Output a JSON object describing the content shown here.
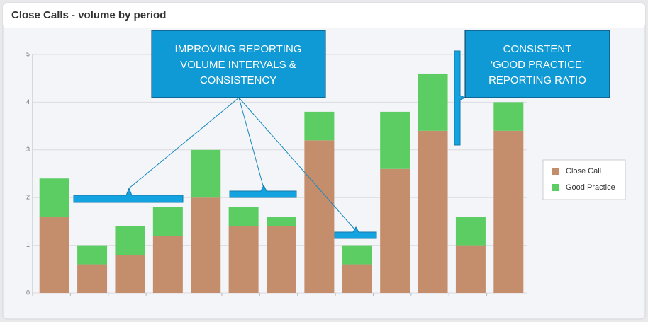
{
  "chart_data": {
    "type": "stacked-bar",
    "title": "Close Calls - volume by period",
    "categories": [
      null,
      null,
      null,
      null,
      null,
      null,
      null,
      null,
      null,
      null,
      null,
      null,
      null
    ],
    "series": [
      {
        "name": "Close Call",
        "color": "#c48e6d",
        "values": [
          1.6,
          0.6,
          0.8,
          1.2,
          2.0,
          1.4,
          1.4,
          3.2,
          0.6,
          2.6,
          3.4,
          1.0,
          3.4
        ]
      },
      {
        "name": "Good Practice",
        "color": "#5ccd62",
        "values": [
          0.8,
          0.4,
          0.6,
          0.6,
          1.0,
          0.4,
          0.2,
          0.6,
          0.4,
          1.2,
          1.2,
          0.6,
          0.6
        ]
      }
    ],
    "ylim": [
      0,
      5
    ],
    "yticks": [
      0,
      1,
      2,
      3,
      4,
      5
    ],
    "grid": true,
    "legend": "right",
    "annotations": [
      {
        "lines": [
          "IMPROVING REPORTING",
          "VOLUME INTERVALS &",
          "CONSISTENCY"
        ]
      },
      {
        "lines": [
          "CONSISTENT",
          "‘GOOD PRACTICE’",
          "REPORTING RATIO"
        ]
      }
    ]
  }
}
